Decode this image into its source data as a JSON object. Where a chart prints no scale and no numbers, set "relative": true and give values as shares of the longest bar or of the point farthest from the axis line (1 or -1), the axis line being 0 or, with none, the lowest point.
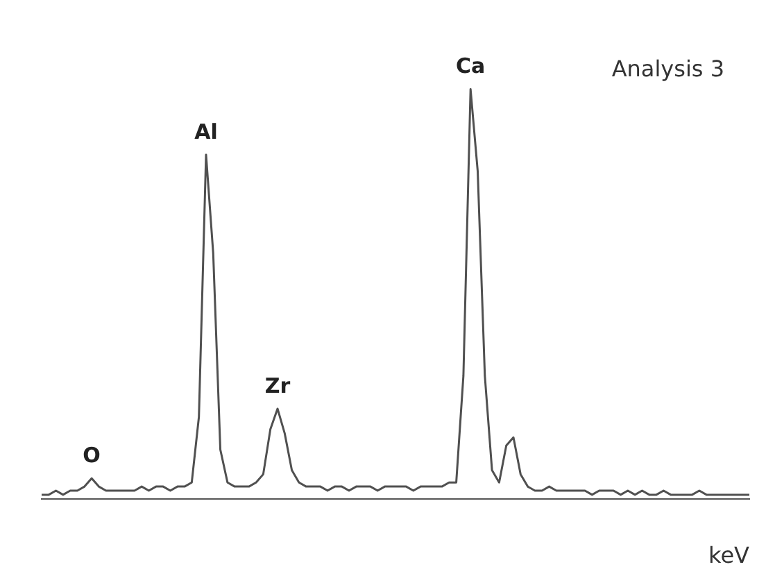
{
  "chart_data": {
    "type": "line",
    "relative": true,
    "xlabel": "keV",
    "legend": false,
    "marker": "none",
    "line_style": "solid",
    "annotations": [
      "Analysis 3",
      {
        "text": "O",
        "y": 0.05
      },
      {
        "text": "Al",
        "y": 0.84
      },
      {
        "text": "Zr",
        "y": 0.22
      },
      {
        "text": "Ca",
        "y": 1
      }
    ],
    "categories": [
      null,
      null,
      null,
      null,
      null,
      null,
      null,
      null,
      null,
      null,
      null,
      null,
      null,
      null,
      null,
      null,
      null,
      null,
      null,
      null,
      null,
      null,
      null,
      null,
      null,
      null,
      null,
      null,
      null,
      null,
      null,
      null,
      null,
      null,
      null,
      null,
      null,
      null,
      null,
      null,
      null,
      null,
      null,
      null,
      null,
      null,
      null,
      null,
      null,
      null,
      null,
      null,
      null,
      null,
      null,
      null,
      null,
      null,
      null,
      null,
      null,
      null,
      null,
      null,
      null,
      null,
      null,
      null,
      null,
      null,
      null,
      null,
      null,
      null,
      null,
      null,
      null,
      null,
      null,
      null,
      null,
      null,
      null,
      null,
      null,
      null,
      null,
      null,
      null,
      null,
      null,
      null,
      null,
      null,
      null,
      null,
      null,
      null,
      null,
      null
    ],
    "series": [
      {
        "color": "#505050",
        "values": [
          0.01,
          0.01,
          0.02,
          0.01,
          0.02,
          0.02,
          0.03,
          0.05,
          0.03,
          0.02,
          0.02,
          0.02,
          0.02,
          0.02,
          0.03,
          0.02,
          0.03,
          0.03,
          0.02,
          0.03,
          0.03,
          0.04,
          0.2,
          0.84,
          0.6,
          0.12,
          0.04,
          0.03,
          0.03,
          0.03,
          0.04,
          0.06,
          0.17,
          0.22,
          0.16,
          0.07,
          0.04,
          0.03,
          0.03,
          0.03,
          0.02,
          0.03,
          0.03,
          0.02,
          0.03,
          0.03,
          0.03,
          0.02,
          0.03,
          0.03,
          0.03,
          0.03,
          0.02,
          0.03,
          0.03,
          0.03,
          0.03,
          0.04,
          0.04,
          0.3,
          1,
          0.8,
          0.3,
          0.07,
          0.04,
          0.13,
          0.15,
          0.06,
          0.03,
          0.02,
          0.02,
          0.03,
          0.02,
          0.02,
          0.02,
          0.02,
          0.02,
          0.01,
          0.02,
          0.02,
          0.02,
          0.01,
          0.02,
          0.01,
          0.02,
          0.01,
          0.01,
          0.02,
          0.01,
          0.01,
          0.01,
          0.01,
          0.02,
          0.01,
          0.01,
          0.01,
          0.01,
          0.01,
          0.01,
          0.01
        ]
      }
    ]
  }
}
